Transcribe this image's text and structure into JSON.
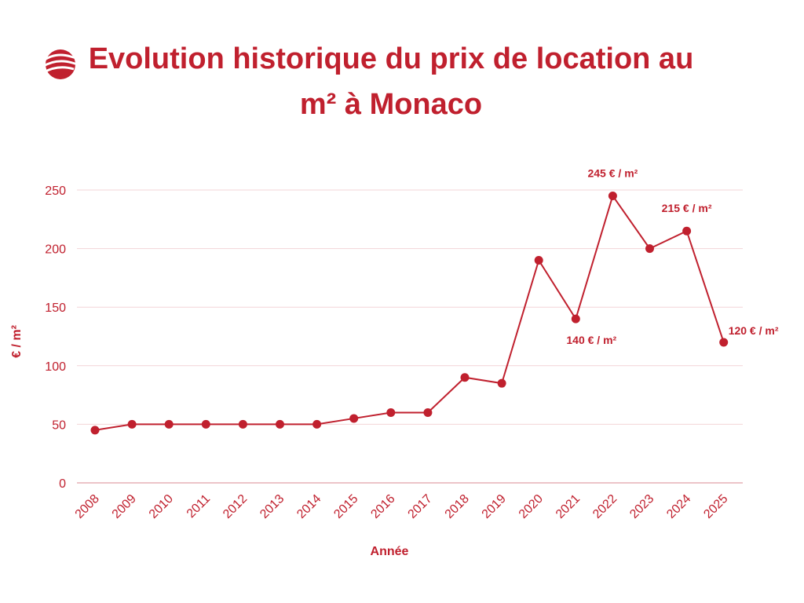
{
  "colors": {
    "accent": "#c0202e",
    "grid": "#f3d4d7",
    "axis": "#e6b0b6"
  },
  "logo": {
    "icon": "globe-waves-icon"
  },
  "chart_data": {
    "type": "line",
    "title": "Evolution historique du prix de location au m² à Monaco",
    "xlabel": "Année",
    "ylabel": "€ / m²",
    "ylim": [
      0,
      250
    ],
    "yticks": [
      0,
      50,
      100,
      150,
      200,
      250
    ],
    "grid": true,
    "categories": [
      "2008",
      "2009",
      "2010",
      "2011",
      "2012",
      "2013",
      "2014",
      "2015",
      "2016",
      "2017",
      "2018",
      "2019",
      "2020",
      "2021",
      "2022",
      "2023",
      "2024",
      "2025"
    ],
    "series": [
      {
        "values": [
          45,
          50,
          50,
          50,
          50,
          50,
          50,
          55,
          60,
          60,
          90,
          85,
          190,
          140,
          245,
          200,
          215,
          120
        ]
      }
    ],
    "annotations": [
      {
        "category": "2021",
        "text": "140 € / m²",
        "position": "below"
      },
      {
        "category": "2022",
        "text": "245 € / m²",
        "position": "above"
      },
      {
        "category": "2024",
        "text": "215 € / m²",
        "position": "above"
      },
      {
        "category": "2025",
        "text": "120 € / m²",
        "position": "right"
      }
    ]
  }
}
